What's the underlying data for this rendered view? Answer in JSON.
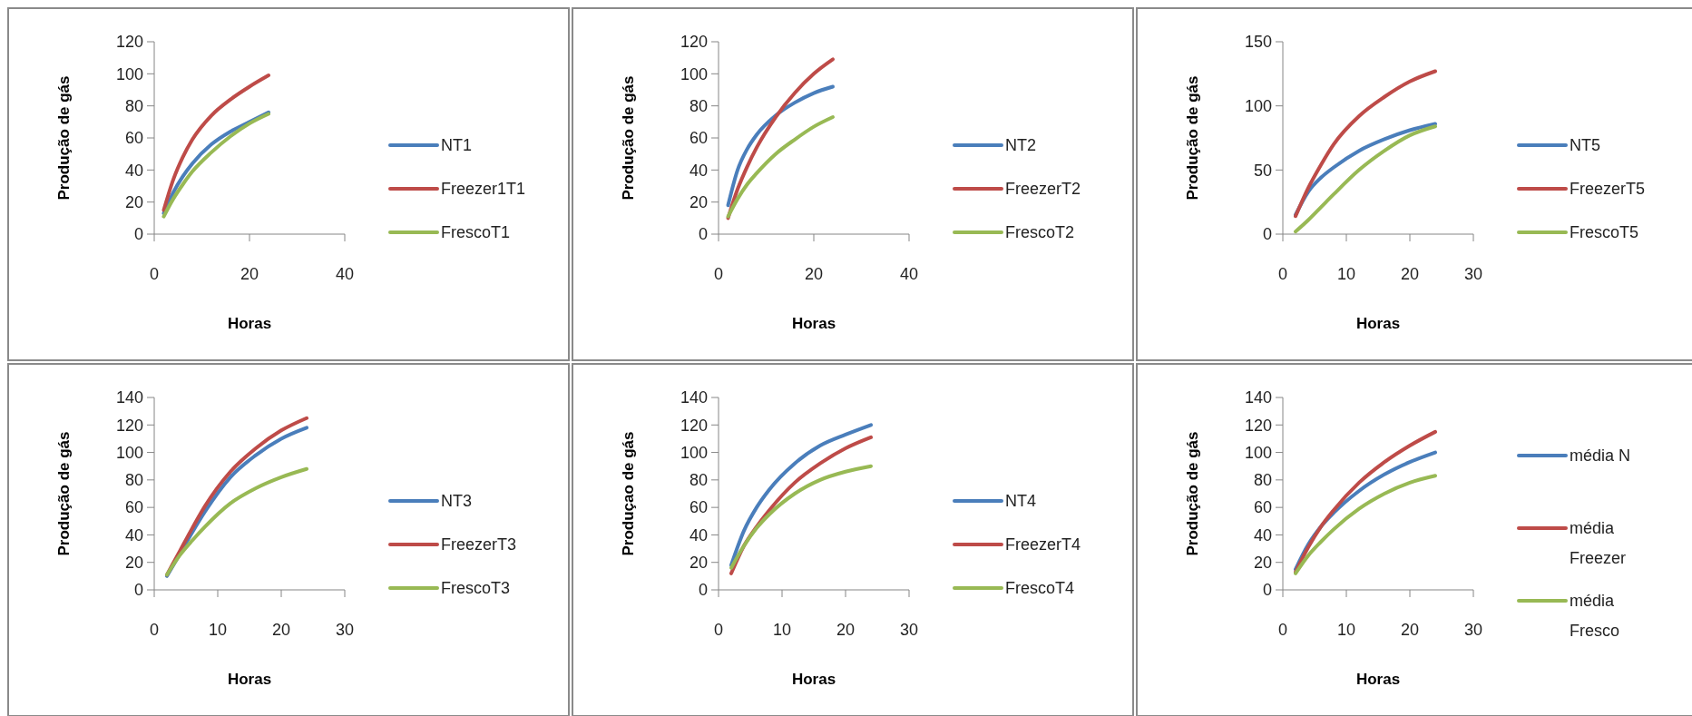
{
  "chart_data": [
    {
      "type": "line",
      "xlabel": "Horas",
      "ylabel": "Produção de gás",
      "xlim": [
        0,
        40
      ],
      "xticks": [
        0,
        20,
        40
      ],
      "ylim": [
        0,
        120
      ],
      "yticks": [
        0,
        20,
        40,
        60,
        80,
        100,
        120
      ],
      "legend": "right",
      "marker": "none",
      "x": [
        2,
        4,
        6,
        8,
        12,
        16,
        20,
        24
      ],
      "series": [
        {
          "name": "NT1",
          "color": "#4a7ebb",
          "values": [
            13,
            26,
            36,
            44,
            56,
            64,
            70,
            76
          ]
        },
        {
          "name": "Freezer1T1",
          "color": "#be4b48",
          "values": [
            15,
            34,
            48,
            59,
            74,
            84,
            92,
            99
          ]
        },
        {
          "name": "FrescoT1",
          "color": "#98b954",
          "values": [
            11,
            22,
            31,
            39,
            51,
            61,
            69,
            75
          ]
        }
      ]
    },
    {
      "type": "line",
      "xlabel": "Horas",
      "ylabel": "Produção de gás",
      "xlim": [
        0,
        40
      ],
      "xticks": [
        0,
        20,
        40
      ],
      "ylim": [
        0,
        120
      ],
      "yticks": [
        0,
        20,
        40,
        60,
        80,
        100,
        120
      ],
      "legend": "right",
      "marker": "none",
      "x": [
        2,
        4,
        6,
        8,
        12,
        16,
        20,
        24
      ],
      "series": [
        {
          "name": "NT2",
          "color": "#4a7ebb",
          "values": [
            18,
            40,
            53,
            62,
            74,
            82,
            88,
            92
          ]
        },
        {
          "name": "FreezerT2",
          "color": "#be4b48",
          "values": [
            10,
            28,
            42,
            54,
            73,
            88,
            100,
            109
          ]
        },
        {
          "name": "FrescoT2",
          "color": "#98b954",
          "values": [
            11,
            22,
            31,
            38,
            50,
            59,
            67,
            73
          ]
        }
      ]
    },
    {
      "type": "line",
      "xlabel": "Horas",
      "ylabel": "Produção de gás",
      "xlim": [
        0,
        30
      ],
      "xticks": [
        0,
        10,
        20,
        30
      ],
      "ylim": [
        0,
        150
      ],
      "yticks": [
        0,
        50,
        100,
        150
      ],
      "legend": "right",
      "marker": "none",
      "x": [
        2,
        4,
        6,
        8,
        12,
        16,
        20,
        24
      ],
      "series": [
        {
          "name": "NT5",
          "color": "#4a7ebb",
          "values": [
            15,
            33,
            44,
            52,
            65,
            74,
            81,
            86
          ]
        },
        {
          "name": "FreezerT5",
          "color": "#be4b48",
          "values": [
            14,
            36,
            54,
            70,
            92,
            107,
            119,
            127
          ]
        },
        {
          "name": "FrescoT5",
          "color": "#98b954",
          "values": [
            2,
            11,
            21,
            31,
            50,
            65,
            77,
            84
          ]
        }
      ]
    },
    {
      "type": "line",
      "xlabel": "Horas",
      "ylabel": "Produção de gás",
      "xlim": [
        0,
        30
      ],
      "xticks": [
        0,
        10,
        20,
        30
      ],
      "ylim": [
        0,
        140
      ],
      "yticks": [
        0,
        20,
        40,
        60,
        80,
        100,
        120,
        140
      ],
      "legend": "right",
      "marker": "none",
      "x": [
        2,
        4,
        6,
        8,
        12,
        16,
        20,
        24
      ],
      "series": [
        {
          "name": "NT3",
          "color": "#4a7ebb",
          "values": [
            10,
            26,
            42,
            57,
            82,
            98,
            110,
            118
          ]
        },
        {
          "name": "FreezerT3",
          "color": "#be4b48",
          "values": [
            11,
            28,
            45,
            61,
            86,
            103,
            116,
            125
          ]
        },
        {
          "name": "FrescoT3",
          "color": "#98b954",
          "values": [
            11,
            25,
            36,
            46,
            63,
            74,
            82,
            88
          ]
        }
      ]
    },
    {
      "type": "line",
      "xlabel": "Horas",
      "ylabel": "Produçao de gás",
      "xlim": [
        0,
        30
      ],
      "xticks": [
        0,
        10,
        20,
        30
      ],
      "ylim": [
        0,
        140
      ],
      "yticks": [
        0,
        20,
        40,
        60,
        80,
        100,
        120,
        140
      ],
      "legend": "right",
      "marker": "none",
      "x": [
        2,
        4,
        6,
        8,
        12,
        16,
        20,
        24
      ],
      "series": [
        {
          "name": "NT4",
          "color": "#4a7ebb",
          "values": [
            18,
            43,
            60,
            73,
            92,
            105,
            113,
            120
          ]
        },
        {
          "name": "FreezerT4",
          "color": "#be4b48",
          "values": [
            12,
            32,
            46,
            58,
            78,
            92,
            103,
            111
          ]
        },
        {
          "name": "FrescoT4",
          "color": "#98b954",
          "values": [
            16,
            32,
            45,
            55,
            70,
            80,
            86,
            90
          ]
        }
      ]
    },
    {
      "type": "line",
      "xlabel": "Horas",
      "ylabel": "Produção de gás",
      "xlim": [
        0,
        30
      ],
      "xticks": [
        0,
        10,
        20,
        30
      ],
      "ylim": [
        0,
        140
      ],
      "yticks": [
        0,
        20,
        40,
        60,
        80,
        100,
        120,
        140
      ],
      "legend": "right",
      "marker": "none",
      "x": [
        2,
        4,
        6,
        8,
        12,
        16,
        20,
        24
      ],
      "series": [
        {
          "name": "média N",
          "color": "#4a7ebb",
          "values": [
            15,
            33,
            46,
            56,
            72,
            84,
            93,
            100
          ]
        },
        {
          "name": "média Freezer",
          "color": "#be4b48",
          "values": [
            13,
            31,
            46,
            58,
            78,
            93,
            105,
            115
          ]
        },
        {
          "name": "média Fresco",
          "color": "#98b954",
          "values": [
            12,
            25,
            35,
            44,
            59,
            70,
            78,
            83
          ]
        }
      ]
    }
  ]
}
